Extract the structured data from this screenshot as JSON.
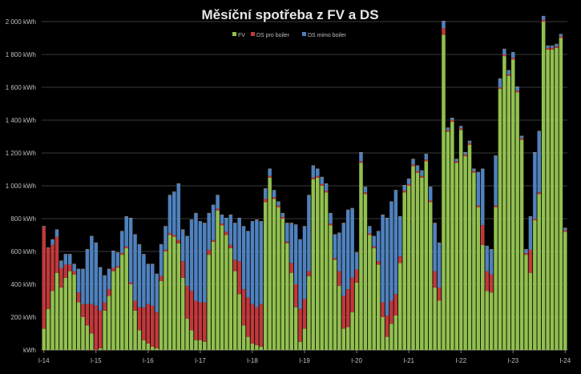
{
  "chart_data": {
    "type": "bar",
    "stacked": true,
    "title": "Měsíční spotřeba z FV a DS",
    "y_unit": "kWh",
    "ylim": [
      0,
      2000
    ],
    "y_ticks": [
      {
        "value": 0,
        "label": "kWh"
      },
      {
        "value": 200,
        "label": "200 kWh"
      },
      {
        "value": 400,
        "label": "400 kWh"
      },
      {
        "value": 600,
        "label": "600 kWh"
      },
      {
        "value": 800,
        "label": "800 kWh"
      },
      {
        "value": 1000,
        "label": "1 000 kWh"
      },
      {
        "value": 1200,
        "label": "1 200 kWh"
      },
      {
        "value": 1400,
        "label": "1 400 kWh"
      },
      {
        "value": 1600,
        "label": "1 600 kWh"
      },
      {
        "value": 1800,
        "label": "1 800 kWh"
      },
      {
        "value": 2000,
        "label": "2 000 kWh"
      }
    ],
    "x_labels": [
      "I-14",
      "I-15",
      "I-16",
      "I-17",
      "I-18",
      "I-19",
      "I-20",
      "I-21",
      "I-22",
      "I-23",
      "I-24"
    ],
    "grid": true,
    "legend_position": "top-center",
    "colors": {
      "FV": "#92c050",
      "DS pro boiler": "#c0393b",
      "DS mimo boiler": "#4f81bd"
    },
    "series": [
      {
        "name": "FV",
        "values": [
          130,
          250,
          360,
          470,
          380,
          440,
          480,
          460,
          290,
          200,
          150,
          100,
          0,
          10,
          240,
          330,
          480,
          500,
          580,
          620,
          400,
          240,
          120,
          60,
          40,
          20,
          10,
          420,
          600,
          700,
          690,
          650,
          440,
          190,
          120,
          60,
          60,
          50,
          580,
          660,
          850,
          760,
          700,
          620,
          480,
          340,
          150,
          80,
          40,
          30,
          20,
          900,
          1050,
          920,
          870,
          800,
          650,
          470,
          260,
          50,
          130,
          450,
          1040,
          1050,
          1000,
          960,
          760,
          550,
          390,
          130,
          140,
          230,
          410,
          1140,
          950,
          700,
          620,
          520,
          200,
          80,
          160,
          210,
          530,
          960,
          1000,
          1120,
          1080,
          1050,
          1150,
          900,
          380,
          300,
          1920,
          1330,
          1390,
          1140,
          1340,
          1180,
          1250,
          1080,
          870,
          640,
          360,
          350,
          870,
          1590,
          1790,
          1670,
          1770,
          1570,
          1280,
          580,
          470,
          790,
          950,
          2000,
          1830,
          1830,
          1840,
          1900,
          720
        ]
      },
      {
        "name": "DS pro boiler",
        "values": [
          620,
          370,
          280,
          220,
          120,
          80,
          40,
          20,
          60,
          80,
          130,
          180,
          270,
          230,
          50,
          40,
          20,
          10,
          10,
          10,
          10,
          60,
          140,
          200,
          240,
          250,
          220,
          30,
          10,
          10,
          10,
          20,
          100,
          200,
          240,
          240,
          230,
          240,
          30,
          10,
          10,
          10,
          20,
          20,
          70,
          200,
          220,
          240,
          240,
          230,
          260,
          20,
          10,
          10,
          10,
          10,
          10,
          60,
          140,
          200,
          180,
          30,
          10,
          10,
          10,
          10,
          10,
          10,
          90,
          200,
          230,
          210,
          80,
          10,
          10,
          10,
          10,
          20,
          90,
          130,
          140,
          130,
          40,
          10,
          10,
          10,
          10,
          10,
          10,
          10,
          100,
          80,
          40,
          10,
          10,
          10,
          10,
          10,
          10,
          10,
          10,
          120,
          120,
          110,
          10,
          10,
          10,
          10,
          10,
          10,
          10,
          10,
          140,
          10,
          10,
          10,
          10,
          10,
          10,
          10,
          10
        ]
      },
      {
        "name": "DS mimo boiler",
        "values": [
          0,
          0,
          30,
          40,
          40,
          60,
          60,
          40,
          140,
          210,
          330,
          410,
          380,
          260,
          160,
          120,
          100,
          80,
          130,
          180,
          390,
          400,
          380,
          320,
          240,
          250,
          230,
          190,
          140,
          230,
          260,
          340,
          190,
          300,
          430,
          530,
          490,
          480,
          220,
          210,
          80,
          50,
          80,
          180,
          220,
          260,
          380,
          400,
          500,
          530,
          500,
          60,
          40,
          40,
          20,
          20,
          110,
          240,
          360,
          420,
          440,
          460,
          70,
          40,
          40,
          40,
          60,
          140,
          230,
          440,
          480,
          420,
          100,
          50,
          30,
          40,
          60,
          180,
          530,
          590,
          600,
          630,
          240,
          30,
          30,
          30,
          30,
          30,
          30,
          80,
          290,
          270,
          40,
          10,
          10,
          10,
          10,
          10,
          10,
          10,
          200,
          340,
          150,
          150,
          300,
          50,
          30,
          20,
          30,
          20,
          10,
          20,
          200,
          400,
          370,
          20,
          10,
          10,
          10,
          10,
          10
        ]
      }
    ]
  }
}
